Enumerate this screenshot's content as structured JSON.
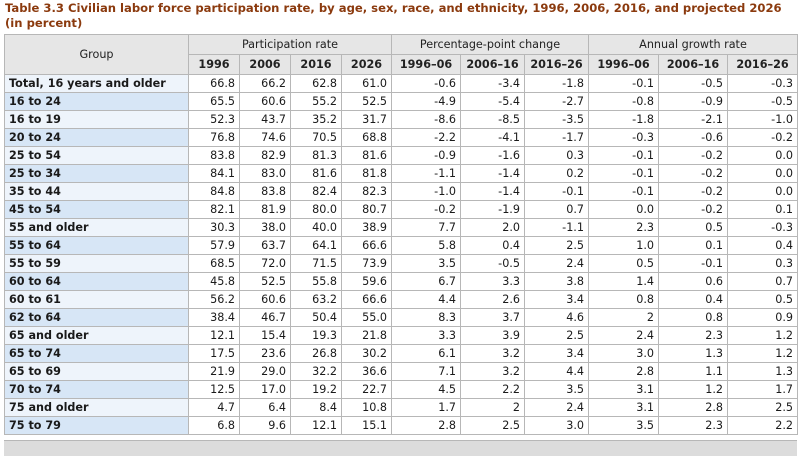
{
  "title": "Table 3.3 Civilian labor force participation rate, by age, sex, race, and ethnicity, 1996, 2006, 2016, and projected 2026 (in percent)",
  "header": {
    "group": "Group",
    "groups": [
      "Participation rate",
      "Percentage-point change",
      "Annual growth rate"
    ],
    "columns": [
      "1996",
      "2006",
      "2016",
      "2026",
      "1996–06",
      "2006–16",
      "2016–26",
      "1996–06",
      "2006–16",
      "2016–26"
    ]
  },
  "rows": [
    {
      "label": "Total, 16 years and older",
      "level": 0,
      "values": [
        "66.8",
        "66.2",
        "62.8",
        "61.0",
        "-0.6",
        "-3.4",
        "-1.8",
        "-0.1",
        "-0.5",
        "-0.3"
      ]
    },
    {
      "label": "16 to 24",
      "level": 1,
      "values": [
        "65.5",
        "60.6",
        "55.2",
        "52.5",
        "-4.9",
        "-5.4",
        "-2.7",
        "-0.8",
        "-0.9",
        "-0.5"
      ]
    },
    {
      "label": "16 to 19",
      "level": 2,
      "values": [
        "52.3",
        "43.7",
        "35.2",
        "31.7",
        "-8.6",
        "-8.5",
        "-3.5",
        "-1.8",
        "-2.1",
        "-1.0"
      ]
    },
    {
      "label": "20 to 24",
      "level": 2,
      "values": [
        "76.8",
        "74.6",
        "70.5",
        "68.8",
        "-2.2",
        "-4.1",
        "-1.7",
        "-0.3",
        "-0.6",
        "-0.2"
      ]
    },
    {
      "label": "25 to 54",
      "level": 1,
      "values": [
        "83.8",
        "82.9",
        "81.3",
        "81.6",
        "-0.9",
        "-1.6",
        "0.3",
        "-0.1",
        "-0.2",
        "0.0"
      ]
    },
    {
      "label": "25 to 34",
      "level": 2,
      "values": [
        "84.1",
        "83.0",
        "81.6",
        "81.8",
        "-1.1",
        "-1.4",
        "0.2",
        "-0.1",
        "-0.2",
        "0.0"
      ]
    },
    {
      "label": "35 to 44",
      "level": 2,
      "values": [
        "84.8",
        "83.8",
        "82.4",
        "82.3",
        "-1.0",
        "-1.4",
        "-0.1",
        "-0.1",
        "-0.2",
        "0.0"
      ]
    },
    {
      "label": "45 to 54",
      "level": 2,
      "values": [
        "82.1",
        "81.9",
        "80.0",
        "80.7",
        "-0.2",
        "-1.9",
        "0.7",
        "0.0",
        "-0.2",
        "0.1"
      ]
    },
    {
      "label": "55 and older",
      "level": 1,
      "values": [
        "30.3",
        "38.0",
        "40.0",
        "38.9",
        "7.7",
        "2.0",
        "-1.1",
        "2.3",
        "0.5",
        "-0.3"
      ]
    },
    {
      "label": "55 to 64",
      "level": 2,
      "values": [
        "57.9",
        "63.7",
        "64.1",
        "66.6",
        "5.8",
        "0.4",
        "2.5",
        "1.0",
        "0.1",
        "0.4"
      ]
    },
    {
      "label": "55 to 59",
      "level": 3,
      "values": [
        "68.5",
        "72.0",
        "71.5",
        "73.9",
        "3.5",
        "-0.5",
        "2.4",
        "0.5",
        "-0.1",
        "0.3"
      ]
    },
    {
      "label": "60 to 64",
      "level": 2,
      "values": [
        "45.8",
        "52.5",
        "55.8",
        "59.6",
        "6.7",
        "3.3",
        "3.8",
        "1.4",
        "0.6",
        "0.7"
      ]
    },
    {
      "label": "60 to 61",
      "level": 3,
      "values": [
        "56.2",
        "60.6",
        "63.2",
        "66.6",
        "4.4",
        "2.6",
        "3.4",
        "0.8",
        "0.4",
        "0.5"
      ]
    },
    {
      "label": "62 to 64",
      "level": 3,
      "values": [
        "38.4",
        "46.7",
        "50.4",
        "55.0",
        "8.3",
        "3.7",
        "4.6",
        "2",
        "0.8",
        "0.9"
      ]
    },
    {
      "label": "65 and older",
      "level": 1,
      "values": [
        "12.1",
        "15.4",
        "19.3",
        "21.8",
        "3.3",
        "3.9",
        "2.5",
        "2.4",
        "2.3",
        "1.2"
      ]
    },
    {
      "label": "65 to 74",
      "level": 2,
      "values": [
        "17.5",
        "23.6",
        "26.8",
        "30.2",
        "6.1",
        "3.2",
        "3.4",
        "3.0",
        "1.3",
        "1.2"
      ]
    },
    {
      "label": "65 to 69",
      "level": 3,
      "values": [
        "21.9",
        "29.0",
        "32.2",
        "36.6",
        "7.1",
        "3.2",
        "4.4",
        "2.8",
        "1.1",
        "1.3"
      ]
    },
    {
      "label": "70 to 74",
      "level": 2,
      "values": [
        "12.5",
        "17.0",
        "19.2",
        "22.7",
        "4.5",
        "2.2",
        "3.5",
        "3.1",
        "1.2",
        "1.7"
      ]
    },
    {
      "label": "75 and older",
      "level": 2,
      "values": [
        "4.7",
        "6.4",
        "8.4",
        "10.8",
        "1.7",
        "2",
        "2.4",
        "3.1",
        "2.8",
        "2.5"
      ]
    },
    {
      "label": "75 to 79",
      "level": 2,
      "values": [
        "6.8",
        "9.6",
        "12.1",
        "15.1",
        "2.8",
        "2.5",
        "3.0",
        "3.5",
        "2.3",
        "2.2"
      ]
    }
  ]
}
